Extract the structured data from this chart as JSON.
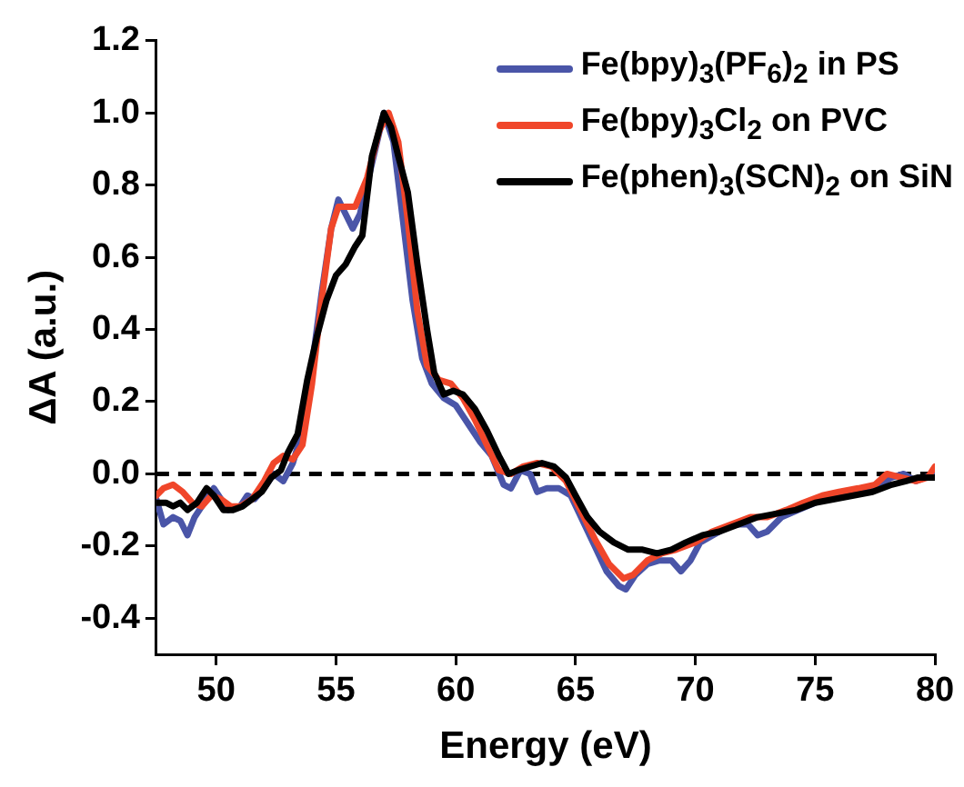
{
  "chart_data": {
    "type": "line",
    "xlabel": "Energy (eV)",
    "ylabel": "ΔA (a.u.)",
    "xlim": [
      47.5,
      80
    ],
    "xticks": [
      50,
      55,
      60,
      65,
      70,
      75,
      80
    ],
    "ylim": [
      -0.5,
      1.2
    ],
    "yticks": [
      -0.4,
      -0.2,
      {
        "value": 0,
        "label": "0.0"
      },
      0.2,
      0.4,
      0.6,
      0.8,
      {
        "value": 1,
        "label": "1.0"
      },
      1.2
    ],
    "legend": "top right",
    "marker": "none",
    "line_style": "solid",
    "ref_lines": [
      {
        "axis": "y",
        "value": 0,
        "color": "#000000",
        "line_style": "dashed"
      }
    ],
    "series": [
      {
        "name": "Fe(bpy)$_{3}$(PF$_{6}$)$_{2}$ in PS",
        "color": "#4a55a8",
        "x": [
          47.5,
          47.8,
          48.2,
          48.5,
          48.8,
          49.1,
          49.5,
          49.9,
          50.2,
          50.5,
          51.0,
          51.3,
          51.6,
          52.0,
          52.4,
          52.8,
          53.2,
          53.6,
          54.0,
          54.4,
          54.8,
          55.1,
          55.4,
          55.7,
          56.0,
          56.5,
          57.0,
          57.4,
          57.8,
          58.2,
          58.6,
          59.0,
          59.5,
          60.0,
          60.5,
          61.0,
          61.5,
          62.0,
          62.3,
          62.7,
          63.1,
          63.4,
          63.8,
          64.3,
          64.8,
          65.3,
          65.8,
          66.3,
          66.8,
          67.1,
          67.5,
          68.0,
          68.5,
          69.0,
          69.4,
          69.8,
          70.2,
          71.0,
          71.6,
          72.2,
          72.6,
          73.0,
          73.6,
          74.3,
          75.0,
          75.6,
          76.2,
          77.0,
          77.6,
          78.2,
          78.7,
          79.2,
          79.6,
          80.0
        ],
        "values": [
          -0.07,
          -0.14,
          -0.12,
          -0.13,
          -0.17,
          -0.12,
          -0.08,
          -0.04,
          -0.07,
          -0.1,
          -0.09,
          -0.06,
          -0.07,
          -0.04,
          0.0,
          -0.02,
          0.03,
          0.12,
          0.3,
          0.5,
          0.68,
          0.76,
          0.72,
          0.68,
          0.72,
          0.86,
          1.0,
          0.92,
          0.7,
          0.48,
          0.32,
          0.25,
          0.21,
          0.19,
          0.14,
          0.09,
          0.05,
          -0.03,
          -0.04,
          0.01,
          0.0,
          -0.05,
          -0.04,
          -0.04,
          -0.06,
          -0.13,
          -0.2,
          -0.27,
          -0.31,
          -0.32,
          -0.28,
          -0.25,
          -0.24,
          -0.24,
          -0.27,
          -0.24,
          -0.19,
          -0.16,
          -0.14,
          -0.14,
          -0.17,
          -0.16,
          -0.12,
          -0.1,
          -0.08,
          -0.06,
          -0.06,
          -0.04,
          -0.03,
          -0.01,
          0.0,
          -0.02,
          -0.01,
          0.0
        ]
      },
      {
        "name": "Fe(bpy)$_{3}$Cl$_{2}$ on PVC",
        "color": "#f0462a",
        "x": [
          47.5,
          47.8,
          48.2,
          48.6,
          49.0,
          49.4,
          49.8,
          50.2,
          50.6,
          51.0,
          51.5,
          52.0,
          52.4,
          52.8,
          53.2,
          53.6,
          54.0,
          54.4,
          54.8,
          55.1,
          55.4,
          55.8,
          56.3,
          56.8,
          57.2,
          57.6,
          58.0,
          58.4,
          58.8,
          59.3,
          59.8,
          60.3,
          60.8,
          61.3,
          61.8,
          62.3,
          62.8,
          63.4,
          64.0,
          64.6,
          65.2,
          65.8,
          66.4,
          67.0,
          67.4,
          68.0,
          68.6,
          69.2,
          70.0,
          70.7,
          71.5,
          72.3,
          73.0,
          73.8,
          74.5,
          75.3,
          76.0,
          76.8,
          77.5,
          78.0,
          78.6,
          79.2,
          79.7,
          80.0
        ],
        "values": [
          -0.06,
          -0.04,
          -0.03,
          -0.05,
          -0.08,
          -0.09,
          -0.06,
          -0.07,
          -0.09,
          -0.09,
          -0.07,
          -0.02,
          0.03,
          0.05,
          0.04,
          0.08,
          0.25,
          0.48,
          0.68,
          0.74,
          0.74,
          0.74,
          0.82,
          0.95,
          1.0,
          0.92,
          0.7,
          0.45,
          0.3,
          0.26,
          0.25,
          0.21,
          0.15,
          0.08,
          0.01,
          0.0,
          0.02,
          0.03,
          0.02,
          -0.02,
          -0.1,
          -0.18,
          -0.25,
          -0.29,
          -0.28,
          -0.24,
          -0.22,
          -0.21,
          -0.19,
          -0.16,
          -0.14,
          -0.12,
          -0.12,
          -0.1,
          -0.08,
          -0.06,
          -0.05,
          -0.04,
          -0.03,
          0.0,
          -0.01,
          -0.02,
          -0.01,
          0.02
        ]
      },
      {
        "name": "Fe(phen)$_{3}$(SCN)$_{2}$ on SiN",
        "color": "#000000",
        "x": [
          47.5,
          47.9,
          48.2,
          48.5,
          48.8,
          49.2,
          49.6,
          49.9,
          50.3,
          50.7,
          51.1,
          51.5,
          51.9,
          52.3,
          52.7,
          53.0,
          53.4,
          53.8,
          54.2,
          54.6,
          55.0,
          55.4,
          55.8,
          56.1,
          56.5,
          57.0,
          57.3,
          57.6,
          58.0,
          58.4,
          58.8,
          59.1,
          59.5,
          59.9,
          60.3,
          60.8,
          61.3,
          61.8,
          62.2,
          62.6,
          63.1,
          63.6,
          64.1,
          64.6,
          65.0,
          65.5,
          66.0,
          66.6,
          67.2,
          67.8,
          68.4,
          69.0,
          69.6,
          70.3,
          71.0,
          71.8,
          72.6,
          73.4,
          74.2,
          75.0,
          75.8,
          76.6,
          77.4,
          78.2,
          78.8,
          79.3,
          80.0
        ],
        "values": [
          -0.08,
          -0.08,
          -0.09,
          -0.08,
          -0.1,
          -0.08,
          -0.04,
          -0.06,
          -0.1,
          -0.1,
          -0.09,
          -0.07,
          -0.05,
          -0.01,
          0.01,
          0.06,
          0.11,
          0.26,
          0.38,
          0.48,
          0.55,
          0.58,
          0.63,
          0.66,
          0.88,
          1.0,
          0.96,
          0.88,
          0.78,
          0.58,
          0.4,
          0.28,
          0.22,
          0.23,
          0.22,
          0.18,
          0.12,
          0.05,
          0.0,
          0.01,
          0.02,
          0.03,
          0.02,
          -0.01,
          -0.06,
          -0.12,
          -0.16,
          -0.19,
          -0.21,
          -0.21,
          -0.22,
          -0.21,
          -0.19,
          -0.17,
          -0.16,
          -0.14,
          -0.12,
          -0.11,
          -0.1,
          -0.08,
          -0.07,
          -0.06,
          -0.05,
          -0.03,
          -0.02,
          -0.01,
          -0.01
        ]
      }
    ]
  }
}
